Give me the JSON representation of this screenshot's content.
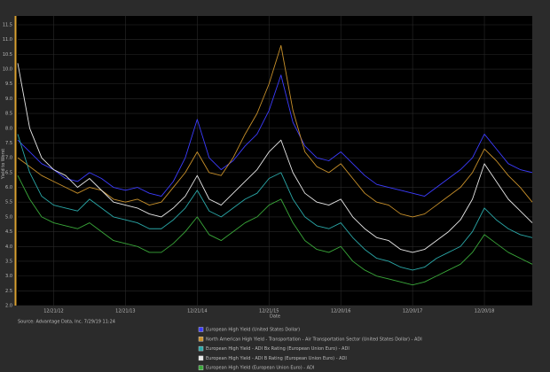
{
  "chart_data": {
    "type": "line",
    "x_label": "Date",
    "y_label": "Yield to Worst",
    "source": "Source: Advantage Data, Inc. 7/29/19 11:24",
    "categories": [
      null,
      null,
      null,
      "12/21/12",
      null,
      null,
      null,
      null,
      null,
      "12/21/13",
      null,
      null,
      null,
      null,
      null,
      "12/21/14",
      null,
      null,
      null,
      null,
      null,
      "12/21/15",
      null,
      null,
      null,
      null,
      null,
      "12/20/16",
      null,
      null,
      null,
      null,
      null,
      "12/20/17",
      null,
      null,
      null,
      null,
      null,
      "12/20/18",
      null,
      null,
      null,
      null
    ],
    "ylim": [
      2.0,
      11.8
    ],
    "yticks": [
      {
        "value": 2,
        "label": "2.0"
      },
      2.5,
      {
        "value": 3,
        "label": "3.0"
      },
      3.5,
      {
        "value": 4,
        "label": "4.0"
      },
      4.5,
      {
        "value": 5,
        "label": "5.0"
      },
      5.5,
      {
        "value": 6,
        "label": "6.0"
      },
      6.5,
      {
        "value": 7,
        "label": "7.0"
      },
      7.5,
      {
        "value": 8,
        "label": "8.0"
      },
      8.5,
      {
        "value": 9,
        "label": "9.0"
      },
      9.5,
      {
        "value": 10,
        "label": "10.0"
      },
      10.5,
      {
        "value": 11,
        "label": "11.0"
      },
      11.5
    ],
    "grid": true,
    "legend": "bottom",
    "series": [
      {
        "name": "European High Yield (United States Dollar)",
        "color": "#3c3cff",
        "values": [
          7.6,
          7.2,
          6.8,
          6.6,
          6.3,
          6.2,
          6.5,
          6.3,
          6.0,
          5.9,
          6.0,
          5.8,
          5.7,
          6.2,
          7.0,
          8.3,
          7.0,
          6.6,
          6.9,
          7.4,
          7.8,
          8.6,
          9.8,
          8.2,
          7.4,
          7.0,
          6.9,
          7.2,
          6.8,
          6.4,
          6.1,
          6.0,
          5.9,
          5.8,
          5.7,
          6.0,
          6.3,
          6.6,
          7.0,
          7.8,
          7.3,
          6.8,
          6.6,
          6.5
        ]
      },
      {
        "name": "North American High Yield - Transportation - Air Transportation Sector (United States Dollar) - ADI",
        "color": "#c8902a",
        "values": [
          7.0,
          6.7,
          6.4,
          6.2,
          6.0,
          5.8,
          6.0,
          5.9,
          5.6,
          5.5,
          5.6,
          5.4,
          5.5,
          6.0,
          6.5,
          7.2,
          6.5,
          6.4,
          7.0,
          7.8,
          8.5,
          9.5,
          10.8,
          8.6,
          7.2,
          6.7,
          6.5,
          6.8,
          6.3,
          5.8,
          5.5,
          5.4,
          5.1,
          5.0,
          5.1,
          5.4,
          5.7,
          6.0,
          6.5,
          7.3,
          6.9,
          6.4,
          6.0,
          5.5
        ]
      },
      {
        "name": "European High Yield - ADI Bx Rating (European Union Euro) - ADI",
        "color": "#2aa8a8",
        "values": [
          7.8,
          6.5,
          5.7,
          5.4,
          5.3,
          5.2,
          5.6,
          5.3,
          5.0,
          4.9,
          4.8,
          4.6,
          4.6,
          4.9,
          5.3,
          5.9,
          5.2,
          5.0,
          5.3,
          5.6,
          5.8,
          6.3,
          6.5,
          5.6,
          5.0,
          4.7,
          4.6,
          4.8,
          4.3,
          3.9,
          3.6,
          3.5,
          3.3,
          3.2,
          3.3,
          3.6,
          3.8,
          4.0,
          4.5,
          5.3,
          4.9,
          4.6,
          4.4,
          4.3
        ]
      },
      {
        "name": "European High Yield - ADI B Rating (European Union Euro) - ADI",
        "color": "#e8e8e8",
        "values": [
          10.2,
          8.0,
          7.0,
          6.6,
          6.4,
          6.0,
          6.3,
          5.9,
          5.5,
          5.4,
          5.3,
          5.1,
          5.0,
          5.3,
          5.7,
          6.4,
          5.6,
          5.4,
          5.8,
          6.2,
          6.6,
          7.2,
          7.6,
          6.5,
          5.8,
          5.5,
          5.4,
          5.6,
          5.0,
          4.6,
          4.3,
          4.2,
          3.9,
          3.8,
          3.9,
          4.2,
          4.5,
          4.9,
          5.6,
          6.8,
          6.2,
          5.6,
          5.2,
          4.8
        ]
      },
      {
        "name": "European High Yield (European Union Euro) - ADI",
        "color": "#3aa83a",
        "values": [
          6.4,
          5.6,
          5.0,
          4.8,
          4.7,
          4.6,
          4.8,
          4.5,
          4.2,
          4.1,
          4.0,
          3.8,
          3.8,
          4.1,
          4.5,
          5.0,
          4.4,
          4.2,
          4.5,
          4.8,
          5.0,
          5.4,
          5.6,
          4.8,
          4.2,
          3.9,
          3.8,
          4.0,
          3.5,
          3.2,
          3.0,
          2.9,
          2.8,
          2.7,
          2.8,
          3.0,
          3.2,
          3.4,
          3.8,
          4.4,
          4.1,
          3.8,
          3.6,
          3.4
        ]
      }
    ]
  }
}
